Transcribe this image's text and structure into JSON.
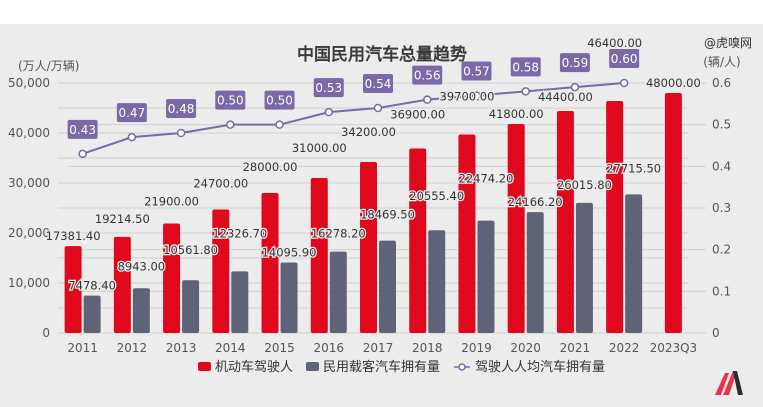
{
  "colors": {
    "background": "#ececec",
    "drivers": "#e0081c",
    "vehicles": "#5f6378",
    "ratio_line": "#7b68a6",
    "badge": "#7b68a6",
    "grid": "#cfcfcf"
  },
  "watermark": "@虎嗅网",
  "logo": "m-logo-icon",
  "chart_data": {
    "type": "bar",
    "title": "中国民用汽车总量趋势",
    "y_left_label": "(万人/万辆)",
    "y_right_label": "(辆/人)",
    "ylim_left": [
      0,
      50000
    ],
    "ylim_right": [
      0,
      0.6
    ],
    "y_left_ticks": [
      "0",
      "10,000",
      "20,000",
      "30,000",
      "40,000",
      "50,000"
    ],
    "y_left_tick_values": [
      0,
      10000,
      20000,
      30000,
      40000,
      50000
    ],
    "y_right_ticks": [
      "0",
      "0.1",
      "0.2",
      "0.3",
      "0.4",
      "0.5",
      "0.6"
    ],
    "y_right_tick_values": [
      0,
      0.1,
      0.2,
      0.3,
      0.4,
      0.5,
      0.6
    ],
    "grid": true,
    "legend_position": "bottom",
    "categories": [
      "2011",
      "2012",
      "2013",
      "2014",
      "2015",
      "2016",
      "2017",
      "2018",
      "2019",
      "2020",
      "2021",
      "2022",
      "2023Q3"
    ],
    "series": [
      {
        "name": "机动车驾驶人",
        "type": "bar",
        "axis": "left",
        "values": [
          17381.4,
          19214.5,
          21900.0,
          24700.0,
          28000.0,
          31000.0,
          34200.0,
          36900.0,
          39700.0,
          41800.0,
          44400.0,
          46400.0,
          48000.0
        ],
        "labels": [
          "17381.40",
          "19214.50",
          "21900.00",
          "24700.00",
          "28000.00",
          "31000.00",
          "34200.00",
          "36900.00",
          "39700.00",
          "41800.00",
          "44400.00",
          "46400.00",
          "48000.00"
        ]
      },
      {
        "name": "民用载客汽车拥有量",
        "type": "bar",
        "axis": "left",
        "values": [
          7478.4,
          8943.0,
          10561.8,
          12326.7,
          14095.9,
          16278.2,
          18469.5,
          20555.4,
          22474.2,
          24166.2,
          26015.8,
          27715.5,
          null
        ],
        "labels": [
          "7478.40",
          "8943.00",
          "10561.80",
          "12326.70",
          "14095.90",
          "16278.20",
          "18469.50",
          "20555.40",
          "22474.20",
          "24166.20",
          "26015.80",
          "27715.50",
          null
        ]
      },
      {
        "name": "驾驶人人均汽车拥有量",
        "type": "line",
        "axis": "right",
        "values": [
          0.43,
          0.47,
          0.48,
          0.5,
          0.5,
          0.53,
          0.54,
          0.56,
          0.57,
          0.58,
          0.59,
          0.6,
          null
        ],
        "labels": [
          "0.43",
          "0.47",
          "0.48",
          "0.50",
          "0.50",
          "0.53",
          "0.54",
          "0.56",
          "0.57",
          "0.58",
          "0.59",
          "0.60",
          null
        ]
      }
    ]
  }
}
